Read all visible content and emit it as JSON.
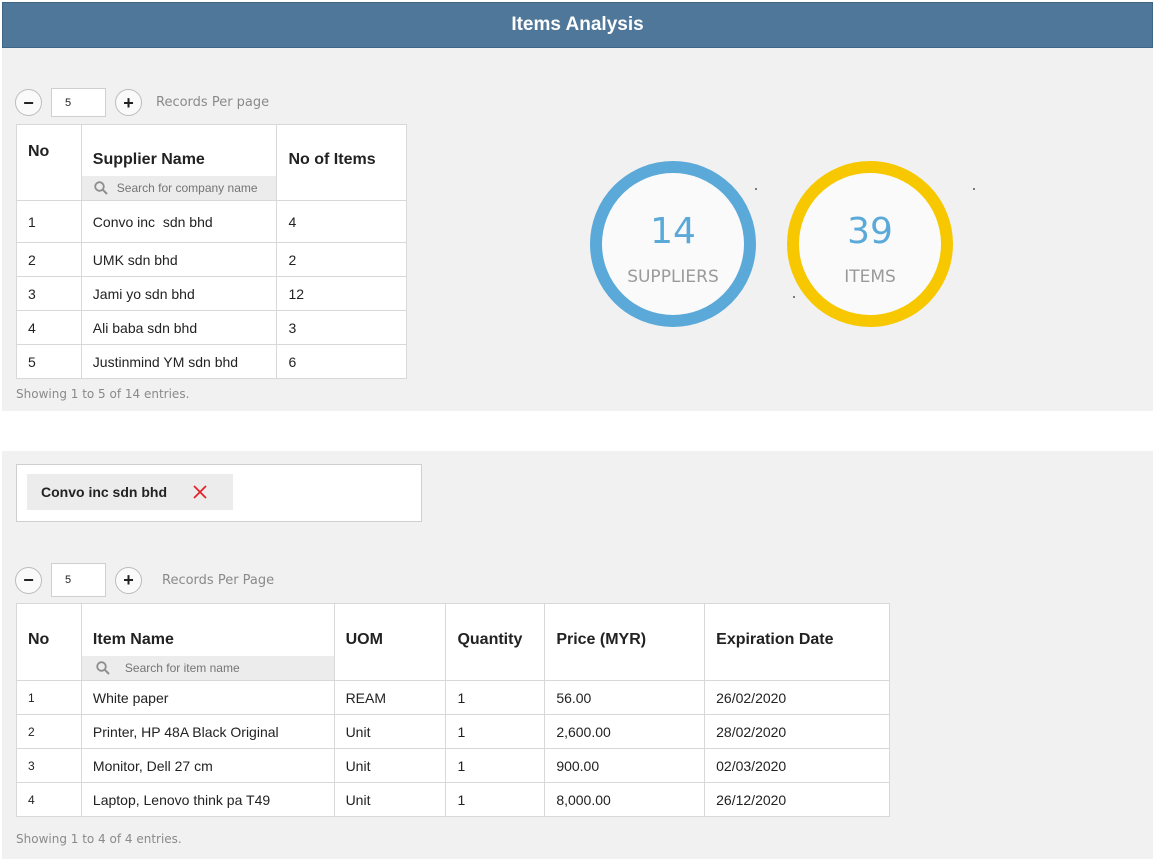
{
  "header": {
    "title": "Items Analysis"
  },
  "suppliers_panel": {
    "records_per_page": "5",
    "records_label": "Records Per page",
    "columns": [
      "No",
      "Supplier Name",
      "No of Items"
    ],
    "search_placeholder": "Search for company name",
    "rows": [
      {
        "no": "1",
        "name": "Convo inc  sdn bhd",
        "items": "4"
      },
      {
        "no": "2",
        "name": "UMK sdn bhd",
        "items": "2"
      },
      {
        "no": "3",
        "name": "Jami yo sdn bhd",
        "items": "12"
      },
      {
        "no": "4",
        "name": "Ali baba sdn bhd",
        "items": "3"
      },
      {
        "no": "5",
        "name": "Justinmind YM sdn bhd",
        "items": "6"
      }
    ],
    "showing": "Showing 1 to 5 of 14 entries."
  },
  "stats": {
    "suppliers": {
      "value": "14",
      "label": "SUPPLIERS",
      "color": "#5aa9d8"
    },
    "items": {
      "value": "39",
      "label": "ITEMS",
      "color": "#f7c800"
    }
  },
  "items_panel": {
    "filter_chip": "Convo inc sdn bhd",
    "records_per_page": "5",
    "records_label": "Records Per Page",
    "columns": [
      "No",
      "Item Name",
      "UOM",
      "Quantity",
      "Price (MYR)",
      "Expiration Date"
    ],
    "search_placeholder": "Search for item name",
    "rows": [
      {
        "no": "1",
        "name": "White paper",
        "uom": "REAM",
        "qty": "1",
        "price": "56.00",
        "exp": "26/02/2020"
      },
      {
        "no": "2",
        "name": "Printer, HP 48A Black Original",
        "uom": "Unit",
        "qty": "1",
        "price": "2,600.00",
        "exp": "28/02/2020"
      },
      {
        "no": "3",
        "name": "Monitor, Dell 27 cm",
        "uom": "Unit",
        "qty": "1",
        "price": "900.00",
        "exp": "02/03/2020"
      },
      {
        "no": "4",
        "name": "Laptop, Lenovo think pa T49",
        "uom": "Unit",
        "qty": "1",
        "price": "8,000.00",
        "exp": "26/12/2020"
      }
    ],
    "showing": "Showing 1 to 4 of 4 entries."
  },
  "icons": {
    "search": "search-icon",
    "remove": "close-icon",
    "minus": "minus-icon",
    "plus": "plus-icon"
  },
  "colors": {
    "header_bg": "#4f7799",
    "remove_x": "#e0232a"
  }
}
